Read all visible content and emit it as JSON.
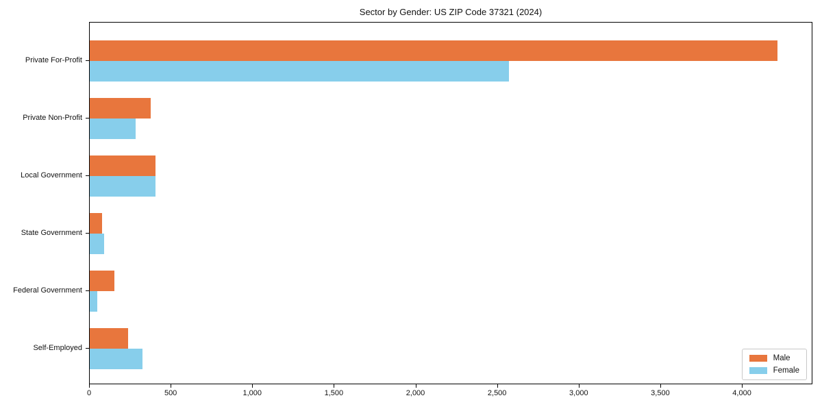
{
  "chart_data": {
    "type": "bar",
    "orientation": "horizontal",
    "title": "Sector by Gender: US ZIP Code 37321 (2024)",
    "categories": [
      "Private For-Profit",
      "Private Non-Profit",
      "Local Government",
      "State Government",
      "Federal Government",
      "Self-Employed"
    ],
    "series": [
      {
        "name": "Male",
        "color": "#e8763d",
        "values": [
          4220,
          375,
          405,
          75,
          150,
          235
        ]
      },
      {
        "name": "Female",
        "color": "#87ceeb",
        "values": [
          2575,
          280,
          405,
          90,
          45,
          325
        ]
      }
    ],
    "xlim": [
      0,
      4432
    ],
    "xticks": {
      "values": [
        0,
        500,
        1000,
        1500,
        2000,
        2500,
        3000,
        3500,
        4000
      ],
      "labels": [
        "0",
        "500",
        "1,000",
        "1,500",
        "2,000",
        "2,500",
        "3,000",
        "3,500",
        "4,000"
      ]
    },
    "legend": {
      "position": "lower right",
      "entries": [
        "Male",
        "Female"
      ]
    },
    "grid": false,
    "background_color": "#ffffff",
    "axis_color": "#000000"
  }
}
